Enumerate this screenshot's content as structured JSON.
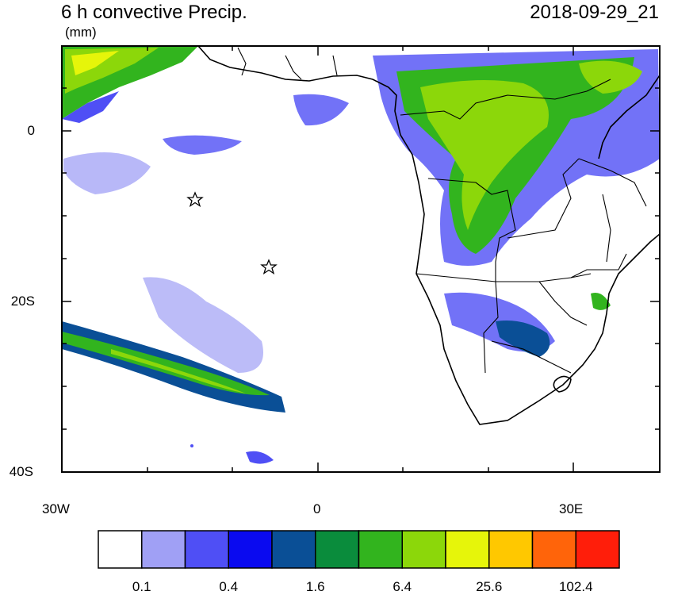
{
  "title": "6 h convective Precip.",
  "units": "(mm)",
  "valid_time": "2018-09-29_21",
  "axes": {
    "lat_labels": [
      "0",
      "20S",
      "40S"
    ],
    "lon_labels": [
      "30W",
      "0",
      "30E"
    ]
  },
  "colorbar": {
    "colors": [
      "#ffffff",
      "#a0a0f5",
      "#4f4ff5",
      "#0a0af0",
      "#0a4f96",
      "#0a8c3c",
      "#32b41e",
      "#8cd70a",
      "#e6f50a",
      "#ffc800",
      "#ff640a",
      "#ff1e0a"
    ],
    "labels": [
      "0.1",
      "0.4",
      "1.6",
      "6.4",
      "25.6",
      "102.4"
    ]
  },
  "markers": [
    {
      "type": "star-icon",
      "lon": -14.5,
      "lat": -8
    },
    {
      "type": "star-icon",
      "lon": -5.7,
      "lat": -16
    }
  ]
}
